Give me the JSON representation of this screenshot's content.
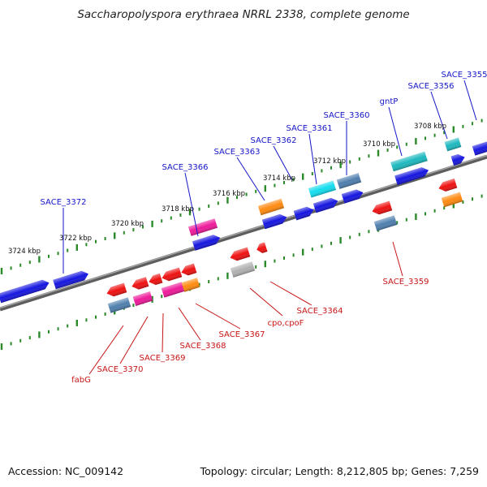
{
  "title": "Saccharopolyspora erythraea NRRL 2338, complete genome",
  "footer": {
    "accession": "Accession: NC_009142",
    "topology": "Topology: circular; Length: 8,212,805 bp; Genes: 7,259"
  },
  "colors": {
    "forward_label": "#1515c8",
    "reverse_label": "#c81515",
    "backbone": "#7a7a7a",
    "ticks": "#2a8a2a",
    "blue": "#1616e0",
    "red": "#ee1111",
    "magenta": "#ee1a9a",
    "orange": "#ff8a10",
    "cyan": "#12dcee",
    "steel": "#4f7fae",
    "teal": "#1cb8be",
    "gray": "#b0b0b0"
  },
  "scale_labels": [
    "3724 kbp",
    "3722 kbp",
    "3720 kbp",
    "3718 kbp",
    "3716 kbp",
    "3714 kbp",
    "3712 kbp",
    "3710 kbp",
    "3708 kbp"
  ],
  "forward_genes": [
    "SACE_3372",
    "SACE_3366",
    "SACE_3363",
    "SACE_3362",
    "SACE_3361",
    "SACE_3360",
    "gntP",
    "SACE_3356",
    "SACE_3355"
  ],
  "reverse_genes": [
    "fabG",
    "SACE_3370",
    "SACE_3369",
    "SACE_3368",
    "SACE_3367",
    "cpo,cpoF",
    "SACE_3364",
    "SACE_3359"
  ]
}
